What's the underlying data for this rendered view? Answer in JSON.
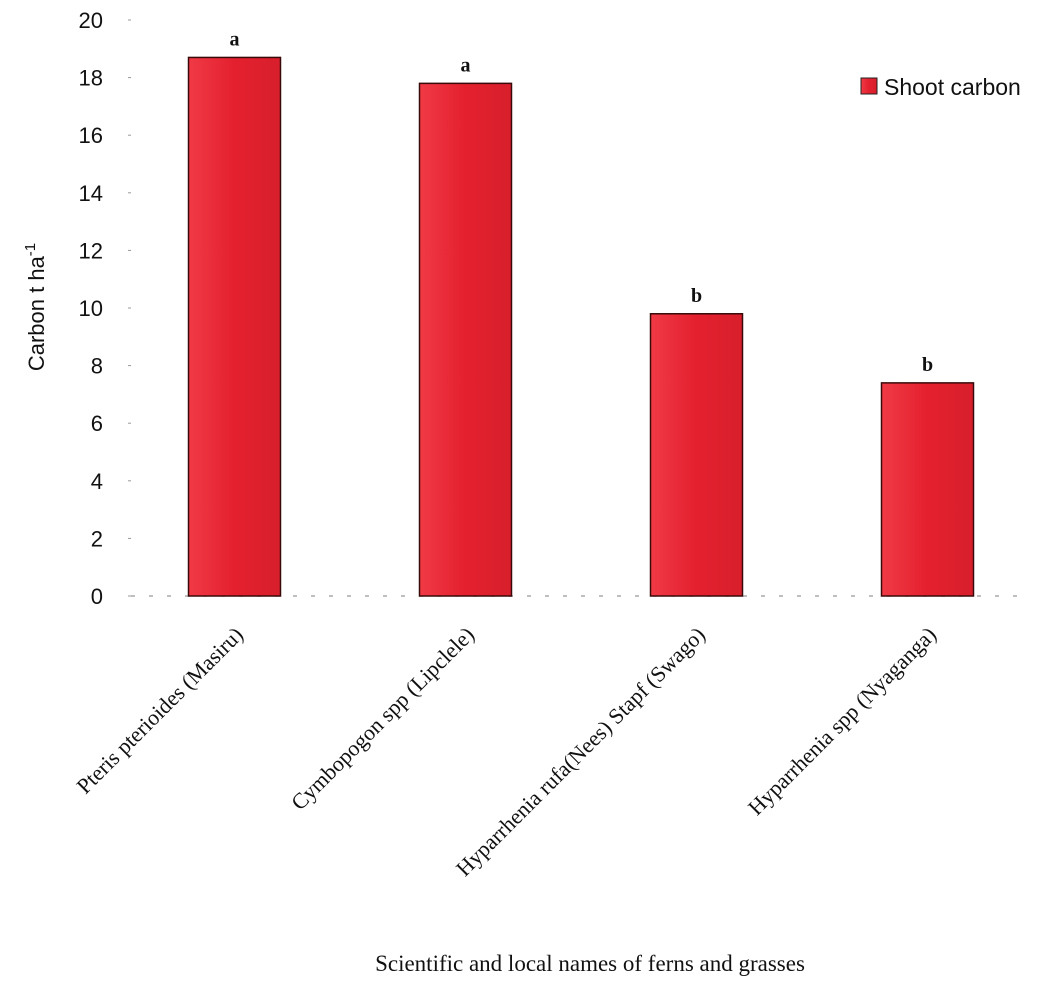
{
  "chart_data": {
    "type": "bar",
    "categories": [
      "Pteris pterioides (Masiru)",
      "Cymbopogon spp (Lipclele)",
      "Hyparrhenia rufa(Nees) Stapf (Swago)",
      "Hyparrhenia spp (Nyaganga)"
    ],
    "series": [
      {
        "name": "Shoot carbon",
        "values": [
          18.7,
          17.8,
          9.8,
          7.4
        ],
        "labels": [
          "a",
          "a",
          "b",
          "b"
        ],
        "color": "#e8303c"
      }
    ],
    "xlabel": "Scientific and local names of ferns and grasses",
    "ylabel": "Carbon t ha",
    "ylabel_superscript": "-1",
    "ylim": [
      0,
      20
    ],
    "yticks": [
      "0",
      "2",
      "4",
      "6",
      "8",
      "10",
      "12",
      "14",
      "16",
      "18",
      "20"
    ],
    "legend_position": "top-right",
    "grid": false
  }
}
